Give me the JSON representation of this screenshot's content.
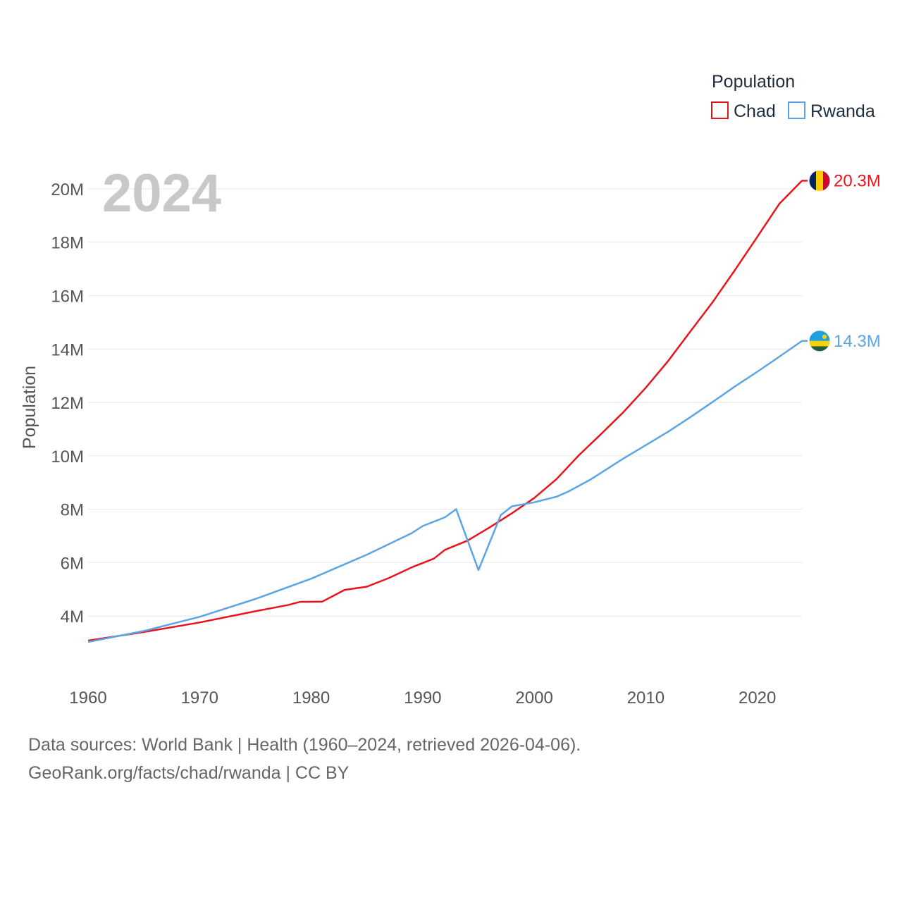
{
  "chart_data": {
    "type": "line",
    "title": "Population",
    "current_year": "2024",
    "xlabel": "",
    "ylabel": "Population",
    "xlim": [
      1960,
      2024
    ],
    "ylim": [
      2000000,
      21000000
    ],
    "x_ticks": [
      1960,
      1970,
      1980,
      1990,
      2000,
      2010,
      2020
    ],
    "y_ticks": [
      {
        "value": 4000000,
        "label": "4M"
      },
      {
        "value": 6000000,
        "label": "6M"
      },
      {
        "value": 8000000,
        "label": "8M"
      },
      {
        "value": 10000000,
        "label": "10M"
      },
      {
        "value": 12000000,
        "label": "12M"
      },
      {
        "value": 14000000,
        "label": "14M"
      },
      {
        "value": 16000000,
        "label": "16M"
      },
      {
        "value": 18000000,
        "label": "18M"
      },
      {
        "value": 20000000,
        "label": "20M"
      }
    ],
    "legend": {
      "title": "Population",
      "position": "top-right"
    },
    "grid": true,
    "series": [
      {
        "name": "Chad",
        "color": "#e8141c",
        "end_label": "20.3M",
        "flag": "chad-flag",
        "points": [
          [
            1960,
            3080000
          ],
          [
            1965,
            3400000
          ],
          [
            1970,
            3760000
          ],
          [
            1975,
            4180000
          ],
          [
            1978,
            4420000
          ],
          [
            1979,
            4530000
          ],
          [
            1981,
            4540000
          ],
          [
            1983,
            4980000
          ],
          [
            1985,
            5100000
          ],
          [
            1987,
            5430000
          ],
          [
            1989,
            5820000
          ],
          [
            1991,
            6150000
          ],
          [
            1992,
            6480000
          ],
          [
            1994,
            6820000
          ],
          [
            1996,
            7320000
          ],
          [
            1998,
            7850000
          ],
          [
            2000,
            8420000
          ],
          [
            2002,
            9130000
          ],
          [
            2004,
            10020000
          ],
          [
            2006,
            10820000
          ],
          [
            2008,
            11640000
          ],
          [
            2010,
            12550000
          ],
          [
            2012,
            13550000
          ],
          [
            2014,
            14660000
          ],
          [
            2016,
            15760000
          ],
          [
            2018,
            16960000
          ],
          [
            2020,
            18200000
          ],
          [
            2022,
            19450000
          ],
          [
            2024,
            20300000
          ]
        ]
      },
      {
        "name": "Rwanda",
        "color": "#5ba4e5",
        "end_label": "14.3M",
        "flag": "rwanda-flag",
        "points": [
          [
            1960,
            3030000
          ],
          [
            1965,
            3440000
          ],
          [
            1970,
            3970000
          ],
          [
            1975,
            4640000
          ],
          [
            1980,
            5400000
          ],
          [
            1985,
            6300000
          ],
          [
            1989,
            7100000
          ],
          [
            1990,
            7370000
          ],
          [
            1992,
            7700000
          ],
          [
            1993,
            8000000
          ],
          [
            1995,
            5720000
          ],
          [
            1997,
            7780000
          ],
          [
            1998,
            8110000
          ],
          [
            2000,
            8260000
          ],
          [
            2002,
            8470000
          ],
          [
            2003,
            8650000
          ],
          [
            2005,
            9100000
          ],
          [
            2008,
            9900000
          ],
          [
            2010,
            10400000
          ],
          [
            2012,
            10900000
          ],
          [
            2014,
            11450000
          ],
          [
            2016,
            12020000
          ],
          [
            2018,
            12600000
          ],
          [
            2020,
            13150000
          ],
          [
            2022,
            13720000
          ],
          [
            2024,
            14300000
          ]
        ]
      }
    ]
  },
  "source": {
    "line1": "Data sources: World Bank | Health (1960–2024, retrieved 2026-04-06).",
    "line2": "GeoRank.org/facts/chad/rwanda | CC BY"
  }
}
